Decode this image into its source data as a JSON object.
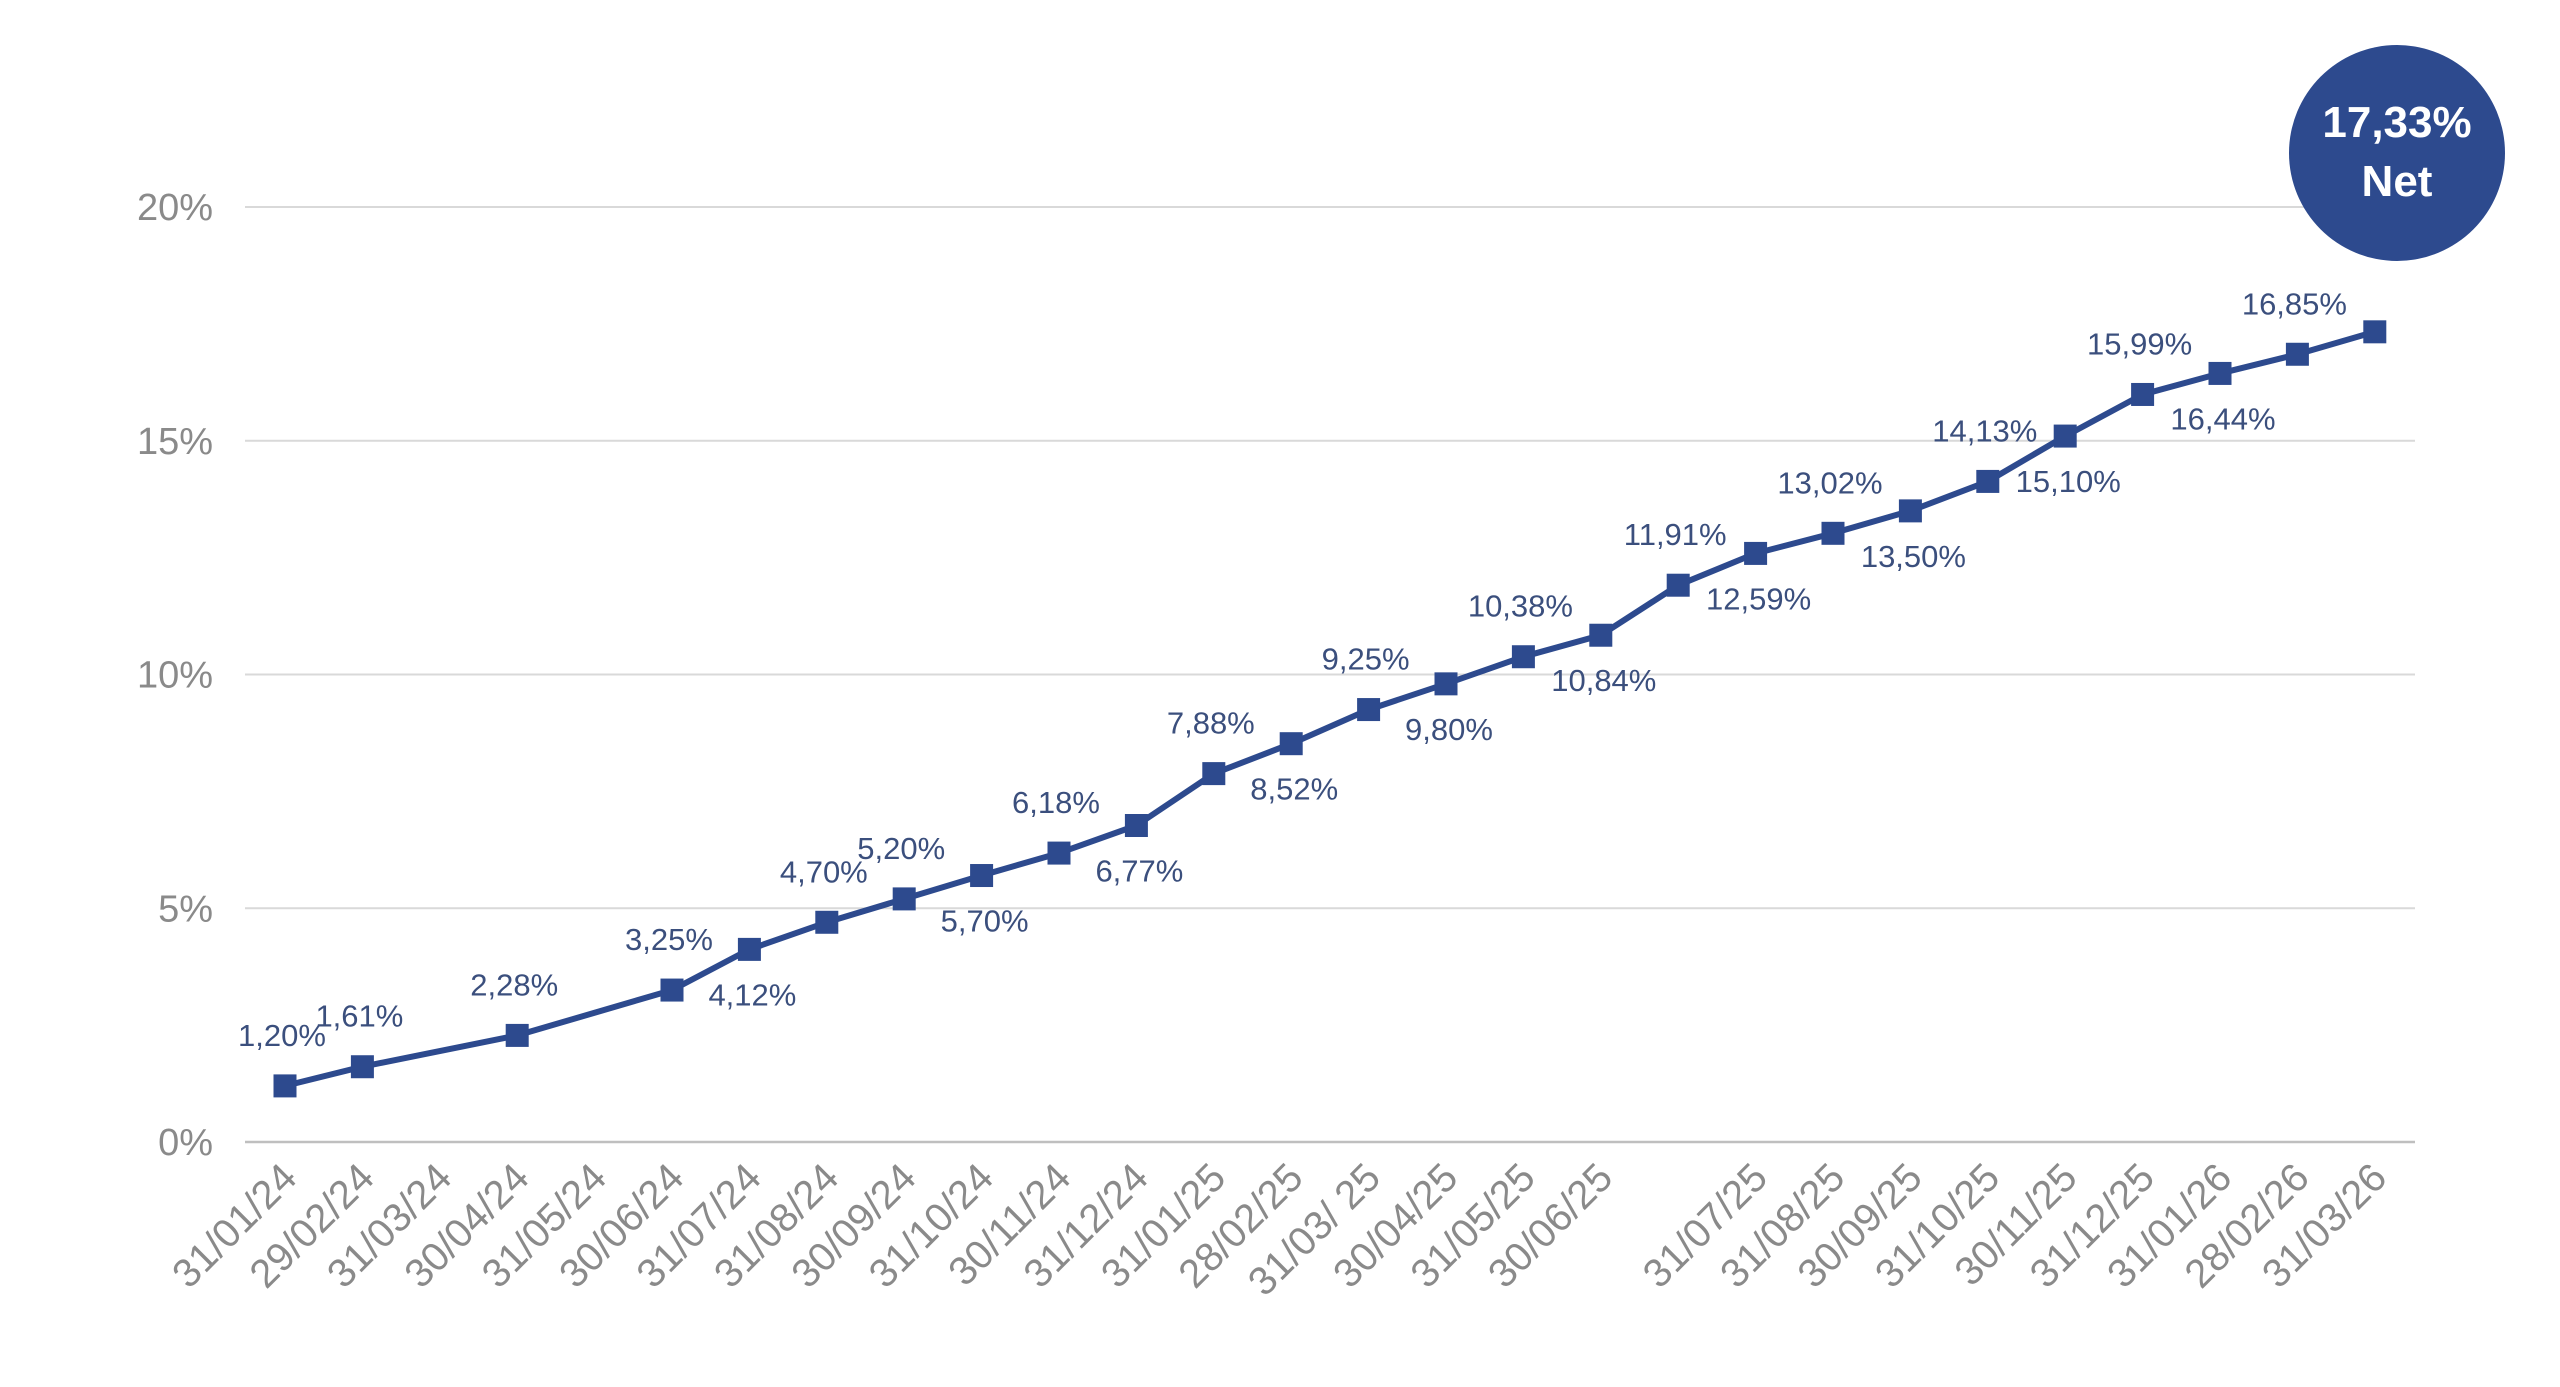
{
  "colors": {
    "series": "#2d4a8e",
    "badge": "#2d4a8e",
    "grid": "#d9d9d9",
    "tick": "#8a8a8a",
    "label": "#3b4f7d"
  },
  "badge": {
    "line1": "17,33%",
    "line2": "Net"
  },
  "chart_data": {
    "type": "line",
    "title": "",
    "xlabel": "",
    "ylabel": "",
    "ylim": [
      0,
      20
    ],
    "yticks": [
      0,
      5,
      10,
      15,
      20
    ],
    "ytick_labels": [
      "0%",
      "5%",
      "10%",
      "15%",
      "20%"
    ],
    "grid": true,
    "categories": [
      "31/01/24",
      "29/02/24",
      "31/03/24",
      "30/04/24",
      "31/05/24",
      "30/06/24",
      "31/07/24",
      "31/08/24",
      "30/09/24",
      "31/10/24",
      "30/11/24",
      "31/12/24",
      "31/01/25",
      "28/02/25",
      "31/03/ 25",
      "30/04/25",
      "31/05/25",
      "30/06/25",
      "",
      "31/07/25",
      "31/08/25",
      "30/09/25",
      "31/10/25",
      "30/11/25",
      "31/12/25",
      "31/01/26",
      "28/02/26",
      "31/03/26"
    ],
    "series": [
      {
        "values": [
          1.2,
          1.61,
          null,
          2.28,
          null,
          3.25,
          4.12,
          4.7,
          5.2,
          5.7,
          6.18,
          6.77,
          7.88,
          8.52,
          9.25,
          9.8,
          10.38,
          10.84,
          11.91,
          12.59,
          13.02,
          13.5,
          14.13,
          15.1,
          15.99,
          16.44,
          16.85,
          17.33
        ],
        "labels": [
          "1,20%",
          "1,61%",
          "",
          "2,28%",
          "",
          "3,25%",
          "4,12%",
          "4,70%",
          "5,20%",
          "5,70%",
          "6,18%",
          "6,77%",
          "7,88%",
          "8,52%",
          "9,25%",
          "9,80%",
          "10,38%",
          "10,84%",
          "11,91%",
          "12,59%",
          "13,02%",
          "13,50%",
          "14,13%",
          "15,10%",
          "15,99%",
          "16,44%",
          "16,85%",
          ""
        ],
        "label_pos": [
          "above",
          "above",
          "",
          "above",
          "",
          "above",
          "below",
          "above",
          "above",
          "below",
          "above",
          "below",
          "above",
          "below",
          "above",
          "below",
          "above",
          "below",
          "above",
          "below",
          "above",
          "below",
          "above",
          "below",
          "above",
          "below",
          "above",
          ""
        ]
      }
    ]
  }
}
